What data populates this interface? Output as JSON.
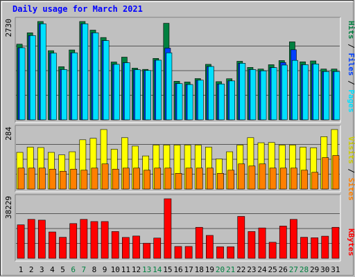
{
  "title": "Daily usage for March 2021",
  "colors": {
    "title": "#0000ff",
    "hits": "#008040",
    "files": "#0040ff",
    "pages": "#00e0ff",
    "visits": "#ffff00",
    "sites": "#ff8000",
    "kbytes": "#ff0000",
    "weekend_label": "#008040",
    "weekday_label": "#000000",
    "panel_bg": "#c0c0c0"
  },
  "chart_data": [
    {
      "type": "bar",
      "panel": "hits-files-pages",
      "y_max_label": "2730",
      "ylim": [
        0,
        2730
      ],
      "categories": [
        "1",
        "2",
        "3",
        "4",
        "5",
        "6",
        "7",
        "8",
        "9",
        "10",
        "11",
        "12",
        "13",
        "14",
        "15",
        "16",
        "17",
        "18",
        "19",
        "20",
        "21",
        "22",
        "23",
        "24",
        "25",
        "26",
        "27",
        "28",
        "29",
        "30",
        "31"
      ],
      "weekend_days": [
        "6",
        "7",
        "13",
        "14",
        "20",
        "21",
        "27",
        "28"
      ],
      "legend": [
        "Pages",
        "Files",
        "Hits"
      ],
      "series": [
        {
          "name": "Hits",
          "values": [
            2100,
            2415,
            2730,
            1920,
            1475,
            1940,
            2730,
            2490,
            2285,
            1605,
            1740,
            1435,
            1400,
            1705,
            2680,
            1070,
            1050,
            1145,
            1540,
            1060,
            1140,
            1625,
            1455,
            1410,
            1530,
            1645,
            2165,
            1610,
            1635,
            1410,
            1410
          ]
        },
        {
          "name": "Files",
          "values": [
            2000,
            2340,
            2665,
            1850,
            1395,
            1860,
            2665,
            2415,
            2200,
            1540,
            1585,
            1390,
            1370,
            1655,
            1990,
            1005,
            980,
            1100,
            1480,
            995,
            1080,
            1570,
            1395,
            1360,
            1450,
            1590,
            1945,
            1530,
            1550,
            1340,
            1340
          ]
        },
        {
          "name": "Pages",
          "values": [
            2000,
            2340,
            2665,
            1850,
            1395,
            1860,
            2665,
            2415,
            2200,
            1540,
            1585,
            1390,
            1370,
            1655,
            1860,
            1005,
            980,
            1100,
            1480,
            995,
            1080,
            1570,
            1395,
            1360,
            1450,
            1520,
            1650,
            1530,
            1550,
            1340,
            1340
          ]
        }
      ]
    },
    {
      "type": "bar",
      "panel": "visits-sites",
      "y_max_label": "284",
      "ylim": [
        0,
        284
      ],
      "categories": [
        "1",
        "2",
        "3",
        "4",
        "5",
        "6",
        "7",
        "8",
        "9",
        "10",
        "11",
        "12",
        "13",
        "14",
        "15",
        "16",
        "17",
        "18",
        "19",
        "20",
        "21",
        "22",
        "23",
        "24",
        "25",
        "26",
        "27",
        "28",
        "29",
        "30",
        "31"
      ],
      "legend": [
        "Sites",
        "Visits"
      ],
      "series": [
        {
          "name": "Visits",
          "values": [
            175,
            200,
            198,
            175,
            163,
            178,
            235,
            242,
            284,
            190,
            245,
            205,
            158,
            210,
            210,
            210,
            210,
            210,
            200,
            144,
            178,
            210,
            245,
            221,
            222,
            210,
            210,
            200,
            197,
            250,
            284
          ]
        },
        {
          "name": "Sites",
          "values": [
            100,
            100,
            100,
            95,
            85,
            95,
            90,
            100,
            120,
            95,
            100,
            100,
            90,
            100,
            100,
            75,
            100,
            100,
            100,
            75,
            90,
            120,
            110,
            120,
            100,
            100,
            100,
            90,
            80,
            150,
            160
          ]
        }
      ]
    },
    {
      "type": "bar",
      "panel": "kbytes",
      "y_max_label": "38229",
      "ylim": [
        0,
        38229
      ],
      "categories": [
        "1",
        "2",
        "3",
        "4",
        "5",
        "6",
        "7",
        "8",
        "9",
        "10",
        "11",
        "12",
        "13",
        "14",
        "15",
        "16",
        "17",
        "18",
        "19",
        "20",
        "21",
        "22",
        "23",
        "24",
        "25",
        "26",
        "27",
        "28",
        "29",
        "30",
        "31"
      ],
      "legend": [
        "KBytes"
      ],
      "series": [
        {
          "name": "KBytes",
          "values": [
            21500,
            25000,
            24500,
            16900,
            13500,
            22300,
            25000,
            23600,
            23600,
            17200,
            13400,
            14300,
            9700,
            13000,
            38229,
            7600,
            7600,
            19900,
            14700,
            7400,
            7400,
            26900,
            17200,
            19500,
            10300,
            20700,
            25000,
            13500,
            13200,
            14200,
            19900
          ]
        }
      ]
    }
  ]
}
